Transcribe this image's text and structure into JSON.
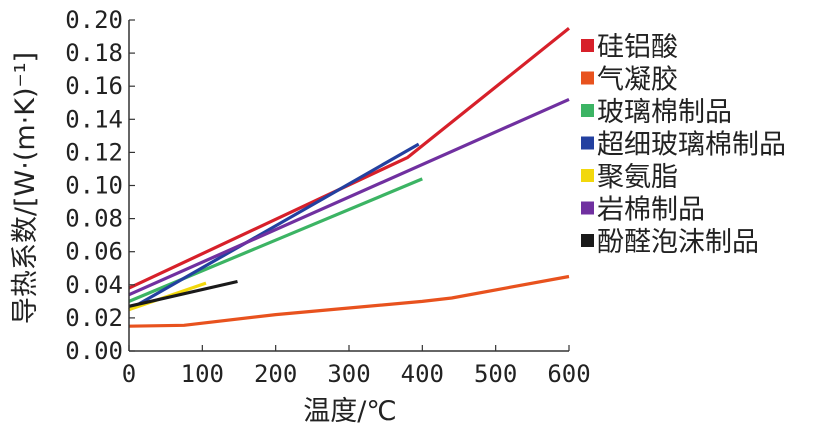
{
  "chart_data": {
    "type": "line",
    "xlabel": "温度/℃",
    "ylabel": "导热系数/[W·(m·K)⁻¹]",
    "xlim": [
      0,
      600
    ],
    "ylim": [
      0.0,
      0.2
    ],
    "x_ticks": [
      "0",
      "100",
      "200",
      "300",
      "400",
      "500",
      "600"
    ],
    "y_ticks": [
      "0.00",
      "0.02",
      "0.04",
      "0.06",
      "0.08",
      "0.10",
      "0.12",
      "0.14",
      "0.16",
      "0.18",
      "0.20"
    ],
    "grid": false,
    "legend_position": "right",
    "series": [
      {
        "name": "硅铝酸",
        "color": "#d7202a",
        "points": [
          [
            0,
            0.038
          ],
          [
            380,
            0.117
          ],
          [
            600,
            0.195
          ]
        ]
      },
      {
        "name": "气凝胶",
        "color": "#e8521e",
        "points": [
          [
            0,
            0.015
          ],
          [
            75,
            0.0155
          ],
          [
            200,
            0.022
          ],
          [
            300,
            0.026
          ],
          [
            400,
            0.03
          ],
          [
            440,
            0.032
          ],
          [
            600,
            0.045
          ]
        ]
      },
      {
        "name": "玻璃棉制品",
        "color": "#3cb464",
        "points": [
          [
            0,
            0.03
          ],
          [
            400,
            0.104
          ]
        ]
      },
      {
        "name": "超细玻璃棉制品",
        "color": "#2340a0",
        "points": [
          [
            0,
            0.025
          ],
          [
            395,
            0.125
          ]
        ]
      },
      {
        "name": "聚氨脂",
        "color": "#f2d80c",
        "points": [
          [
            0,
            0.025
          ],
          [
            105,
            0.041
          ]
        ]
      },
      {
        "name": "岩棉制品",
        "color": "#7030a0",
        "points": [
          [
            0,
            0.034
          ],
          [
            600,
            0.152
          ]
        ]
      },
      {
        "name": "酚醛泡沫制品",
        "color": "#1a1a1a",
        "points": [
          [
            0,
            0.027
          ],
          [
            148,
            0.042
          ]
        ]
      }
    ]
  }
}
